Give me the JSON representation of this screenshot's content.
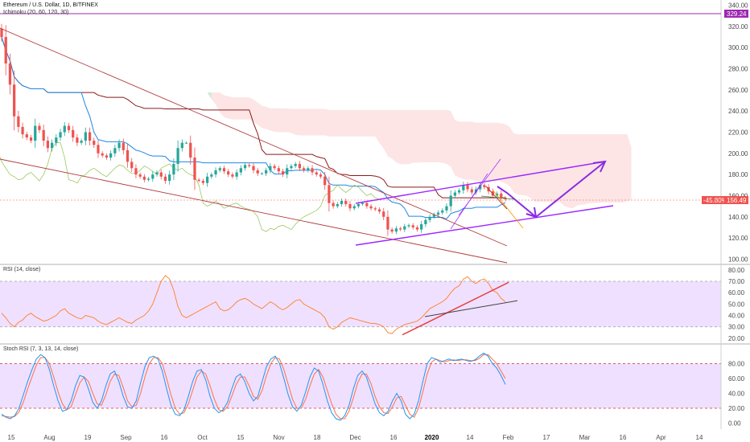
{
  "header": {
    "symbol_line": "Ethereum / U.S. Dollar, 1D, BITFINEX",
    "indicator": "Ichimoku (20, 60, 120, 30)"
  },
  "panes": {
    "rsi_title": "RSI (14, close)",
    "stoch_title": "Stoch RSI (7, 3, 13, 14, close)"
  },
  "price_tags": {
    "top_value": "329.24",
    "change": "-45.80%",
    "last": "156.49"
  },
  "colors": {
    "candle_up": "#26a69a",
    "candle_down": "#ef5350",
    "trend_red": "#b23b3b",
    "channel_purple": "#9c27ff",
    "arrow_purple": "#8a2be2",
    "cloud_red": "#fde1e1",
    "cloud_green": "#c8e6c9",
    "kijun": "#8b1a1a",
    "tenkan": "#1e88e5",
    "chikou": "#8bc34a",
    "rsi_line": "#ff7f27",
    "band_fill": "#e9d5ff",
    "stoch_k": "#2196f3",
    "stoch_d": "#ff7043"
  },
  "chart_data": [
    {
      "type": "line",
      "title": "Ethereum / U.S. Dollar, 1D, BITFINEX",
      "x_tick_labels": [
        "15",
        "Aug",
        "19",
        "Sep",
        "16",
        "Oct",
        "15",
        "Nov",
        "18",
        "Dec",
        "16",
        "2020",
        "14",
        "Feb",
        "17",
        "Mar",
        "16",
        "Apr",
        "14"
      ],
      "y_tick_labels": [
        "100.00",
        "120.00",
        "140.00",
        "160.00",
        "180.00",
        "200.00",
        "220.00",
        "240.00",
        "260.00",
        "280.00",
        "300.00",
        "320.00",
        "340.00"
      ],
      "ylim": [
        95,
        345
      ],
      "series": [
        {
          "values": [
            310,
            285,
            265,
            235,
            225,
            218,
            215,
            212,
            226,
            222,
            212,
            205,
            210,
            215,
            220,
            226,
            222,
            215,
            210,
            212,
            220,
            212,
            208,
            200,
            198,
            196,
            200,
            205,
            210,
            203,
            192,
            186,
            180,
            178,
            175,
            176,
            180,
            182,
            178,
            174,
            180,
            190,
            205,
            210,
            210,
            196,
            175,
            174,
            172,
            178,
            180,
            184,
            186,
            183,
            180,
            178,
            182,
            186,
            189,
            188,
            184,
            181,
            181,
            184,
            188,
            186,
            183,
            180,
            186,
            188,
            190,
            186,
            184,
            186,
            182,
            180,
            178,
            170,
            153,
            150,
            152,
            155,
            152,
            148,
            150,
            152,
            153,
            150,
            148,
            147,
            145,
            140,
            128,
            126,
            129,
            128,
            131,
            132,
            130,
            128,
            133,
            137,
            140,
            142,
            144,
            146,
            150,
            160,
            163,
            165,
            170,
            166,
            163,
            166,
            170,
            168,
            164,
            160,
            162,
            158,
            156.49
          ]
        }
      ]
    },
    {
      "type": "line",
      "title": "RSI (14, close)",
      "y_tick_labels": [
        "20.00",
        "30.00",
        "40.00",
        "50.00",
        "60.00",
        "70.00",
        "80.00"
      ],
      "ylim": [
        15,
        82
      ],
      "series": [
        {
          "values": [
            42,
            38,
            33,
            30,
            34,
            36,
            40,
            42,
            39,
            37,
            35,
            36,
            38,
            40,
            44,
            46,
            42,
            40,
            38,
            37,
            40,
            39,
            38,
            35,
            33,
            32,
            34,
            36,
            38,
            36,
            34,
            33,
            36,
            38,
            40,
            44,
            50,
            60,
            70,
            75,
            72,
            62,
            48,
            40,
            38,
            40,
            42,
            44,
            46,
            48,
            50,
            52,
            46,
            44,
            45,
            48,
            52,
            54,
            55,
            53,
            50,
            48,
            46,
            49,
            52,
            50,
            47,
            45,
            47,
            50,
            53,
            54,
            50,
            48,
            46,
            44,
            42,
            38,
            30,
            28,
            30,
            34,
            36,
            38,
            37,
            36,
            35,
            34,
            33,
            33,
            32,
            30,
            25,
            24,
            28,
            30,
            32,
            33,
            34,
            35,
            38,
            42,
            46,
            48,
            50,
            52,
            55,
            60,
            64,
            66,
            72,
            74,
            70,
            68,
            71,
            72,
            68,
            62,
            60,
            55,
            52
          ]
        }
      ]
    },
    {
      "type": "line",
      "title": "Stoch RSI (7, 3, 13, 14, close)",
      "y_tick_labels": [
        "0.00",
        "20.00",
        "40.00",
        "60.00",
        "80.00"
      ],
      "ylim": [
        -8,
        102
      ],
      "series": [
        {
          "values": [
            12,
            8,
            6,
            10,
            20,
            38,
            56,
            72,
            86,
            92,
            88,
            72,
            50,
            30,
            16,
            18,
            30,
            50,
            64,
            62,
            46,
            28,
            20,
            30,
            50,
            66,
            70,
            56,
            36,
            22,
            20,
            30,
            54,
            76,
            88,
            90,
            86,
            70,
            46,
            24,
            12,
            10,
            18,
            36,
            56,
            70,
            72,
            58,
            36,
            20,
            14,
            18,
            28,
            46,
            62,
            66,
            56,
            40,
            30,
            36,
            56,
            76,
            86,
            90,
            80,
            60,
            38,
            22,
            16,
            24,
            42,
            62,
            74,
            70,
            52,
            30,
            14,
            6,
            4,
            10,
            24,
            46,
            64,
            70,
            62,
            44,
            26,
            14,
            10,
            16,
            30,
            40,
            30,
            12,
            6,
            12,
            30,
            56,
            80,
            88,
            86,
            82,
            84,
            86,
            84,
            85,
            86,
            84,
            83,
            85,
            90,
            94,
            90,
            80,
            74,
            64,
            52
          ]
        },
        {
          "values": [
            10,
            9,
            8,
            9,
            15,
            28,
            46,
            62,
            78,
            88,
            88,
            80,
            62,
            42,
            26,
            18,
            22,
            38,
            54,
            62,
            56,
            40,
            26,
            24,
            38,
            56,
            66,
            64,
            48,
            30,
            22,
            24,
            40,
            62,
            80,
            88,
            88,
            80,
            60,
            38,
            20,
            12,
            14,
            26,
            44,
            62,
            70,
            66,
            50,
            32,
            18,
            16,
            22,
            36,
            52,
            62,
            62,
            50,
            36,
            32,
            44,
            64,
            80,
            88,
            86,
            72,
            52,
            32,
            20,
            20,
            32,
            50,
            66,
            72,
            62,
            44,
            26,
            12,
            6,
            6,
            16,
            34,
            54,
            66,
            66,
            54,
            36,
            22,
            14,
            13,
            22,
            34,
            36,
            24,
            12,
            8,
            20,
            42,
            66,
            82,
            86,
            84,
            82,
            84,
            85,
            84,
            85,
            85,
            84,
            84,
            87,
            92,
            92,
            86,
            80,
            70,
            60
          ]
        }
      ]
    }
  ]
}
